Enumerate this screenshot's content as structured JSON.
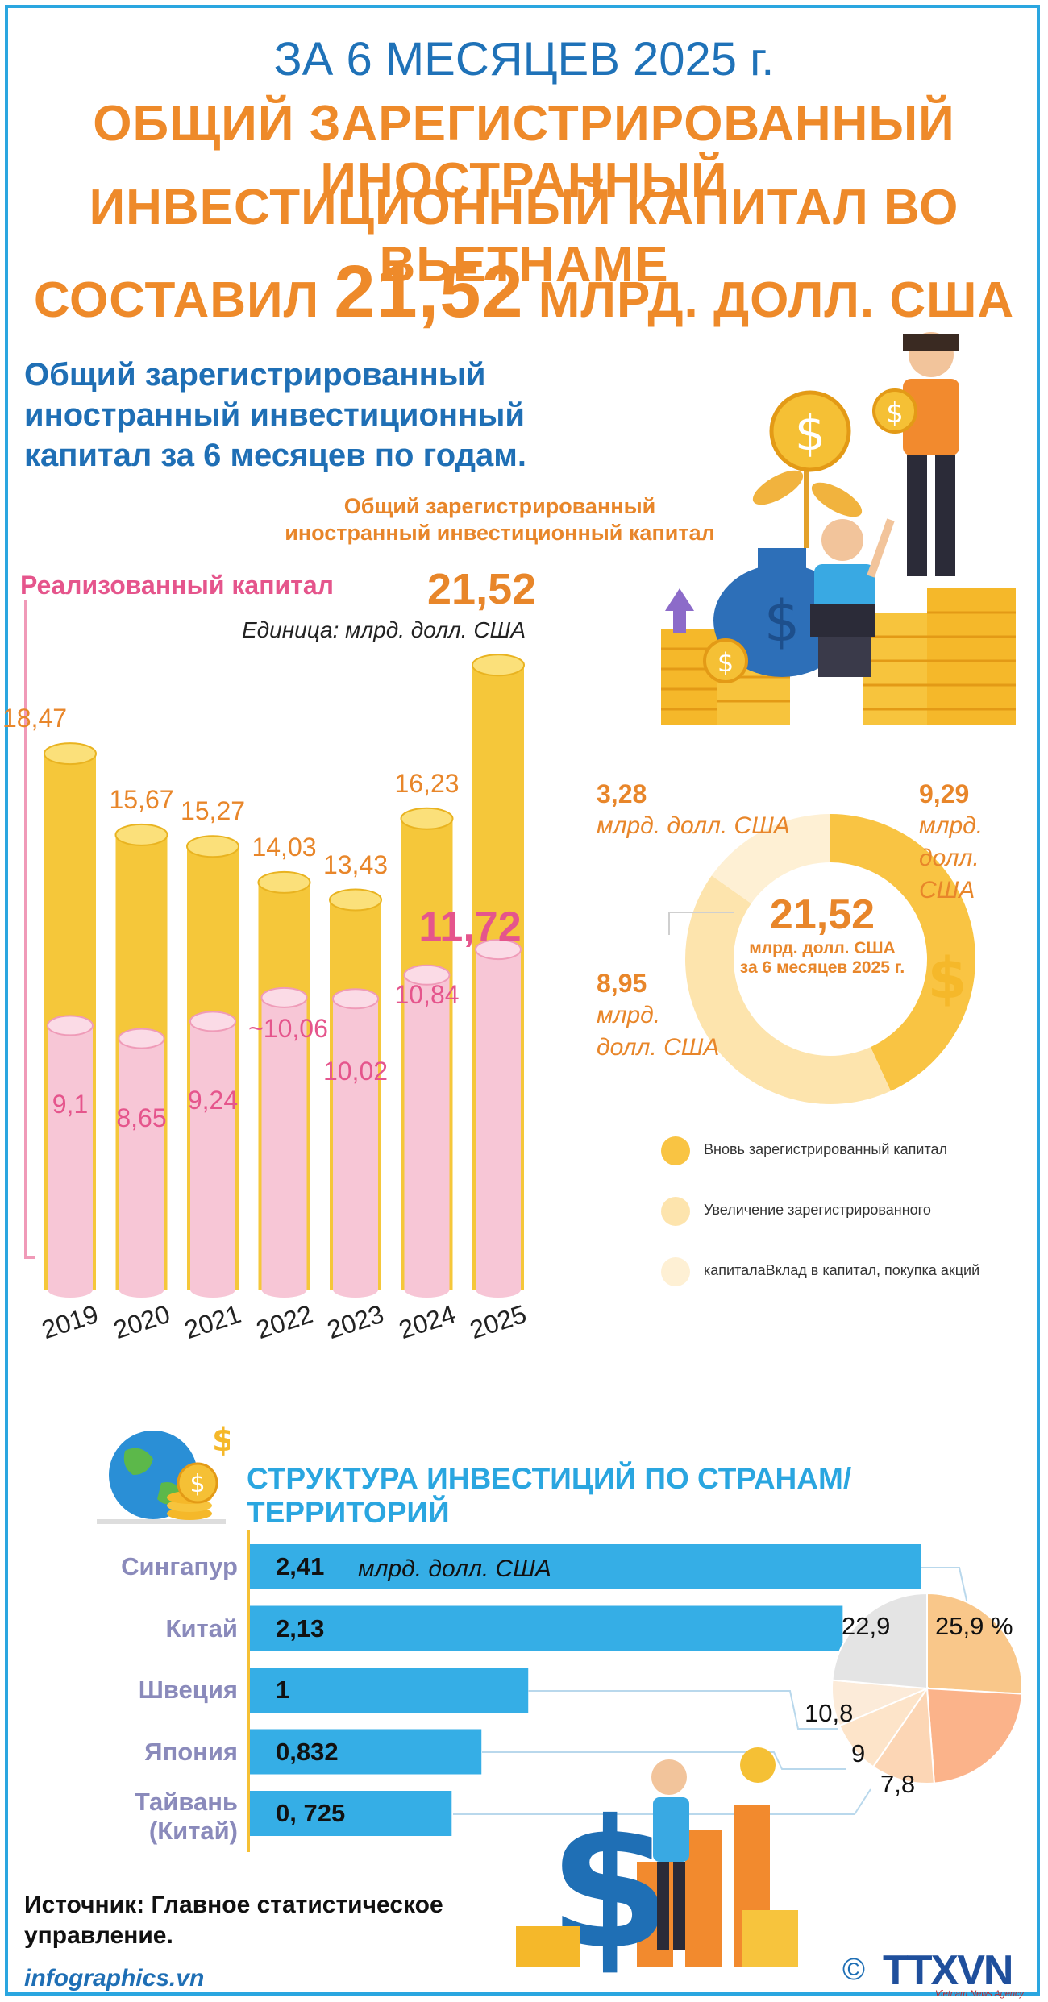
{
  "header": {
    "line1": "ЗА 6 МЕСЯЦЕВ 2025 г.",
    "line2": "ОБЩИЙ ЗАРЕГИСТРИРОВАННЫЙ ИНОСТРАННЫЙ",
    "line3": "ИНВЕСТИЦИОННЫЙ КАПИТАЛ ВО ВЬЕТНАМЕ",
    "line4_pre": "СОСТАВИЛ ",
    "line4_num": "21,52",
    "line4_post": " МЛРД. ДОЛЛ. США"
  },
  "section1": {
    "title_lines": [
      "Общий зарегистрированный",
      "иностранный инвестиционный",
      "капитал за 6 месяцев по годам."
    ],
    "legend_total_lines": [
      "Общий зарегистрированный",
      "иностранный инвестиционный капитал"
    ],
    "legend_realized": "Реализованный капитал",
    "top_value": "21,52",
    "unit": "Единица: млрд. долл. США"
  },
  "section2": {
    "title": "СТРУКТУРА ИНВЕСТИЦИЙ ПО СТРАНАМ/ТЕРРИТОРИЙ",
    "unit_label": "млрд. долл. США"
  },
  "source_lines": [
    "Источник: Главное статистическое",
    "управление."
  ],
  "site": "infographics.vn",
  "logo_text": "TTXVN",
  "logo_sub": "Vietnam News Agency",
  "copyright": "©",
  "colors": {
    "orange": "#ee8a2a",
    "blue": "#1f72b8",
    "yellow_bar": "#f5c73a",
    "pink_bar": "#f7c6d6",
    "pink_text": "#e5558c",
    "country_bar": "#35aee6"
  },
  "chart_data": [
    {
      "type": "bar",
      "categories": [
        "2019",
        "2020",
        "2021",
        "2022",
        "2023",
        "2024",
        "2025"
      ],
      "series": [
        {
          "name": "Общий зарегистрированный иностранный инвестиционный капитал",
          "values": [
            18.47,
            15.67,
            15.27,
            14.03,
            13.43,
            16.23,
            21.52
          ],
          "labels": [
            "18,47",
            "15,67",
            "15,27",
            "14,03",
            "13,43",
            "16,23",
            "21,52"
          ]
        },
        {
          "name": "Реализованный капитал",
          "values": [
            9.1,
            8.65,
            9.24,
            10.06,
            10.02,
            10.84,
            11.72
          ],
          "labels": [
            "9,1",
            "8,65",
            "9,24",
            "~10,06",
            "10,02",
            "10,84",
            "11,72"
          ]
        }
      ],
      "ylabel": "Единица: млрд. долл. США",
      "ylim": [
        0,
        22
      ]
    },
    {
      "type": "pie",
      "variant": "donut",
      "center_value": "21,52",
      "center_line1": "млрд. долл. США",
      "center_line2": "за 6 месяцев 2025 г.",
      "slices": [
        {
          "name": "Вновь зарегистрированный капитал",
          "value": 9.29,
          "label_num": "9,29",
          "label_unit": [
            "млрд.",
            "долл.",
            "США"
          ],
          "color": "#f9c443"
        },
        {
          "name": "Увеличение зарегистрированного",
          "value": 8.95,
          "label_num": "8,95",
          "label_unit": [
            "млрд.",
            "долл. США"
          ],
          "color": "#fde4ad"
        },
        {
          "name": "капиталаВклад в капитал, покупка акций",
          "value": 3.28,
          "label_num": "3,28",
          "label_unit": [
            "млрд. долл. США"
          ],
          "color": "#fef0d4"
        }
      ]
    },
    {
      "type": "bar",
      "orientation": "horizontal",
      "categories": [
        "Сингапур",
        "Китай",
        "Швеция",
        "Япония",
        "Тайвань (Китай)"
      ],
      "values": [
        2.41,
        2.13,
        1,
        0.832,
        0.725
      ],
      "labels": [
        "2,41",
        "2,13",
        "1",
        "0,832",
        "0, 725"
      ],
      "xlim": [
        0,
        2.41
      ]
    },
    {
      "type": "pie",
      "slices": [
        {
          "value": 25.9,
          "label": "25,9 %",
          "color": "#f9c78a"
        },
        {
          "value": 22.9,
          "label": "22,9",
          "color": "#fbb38a"
        },
        {
          "value": 10.8,
          "label": "10,8",
          "color": "#fcd6b5"
        },
        {
          "value": 9,
          "label": "9",
          "color": "#fde4c9"
        },
        {
          "value": 7.8,
          "label": "7,8",
          "color": "#fcebd9"
        },
        {
          "value": 23.6,
          "label": "",
          "color": "#e4e4e4"
        }
      ]
    }
  ]
}
